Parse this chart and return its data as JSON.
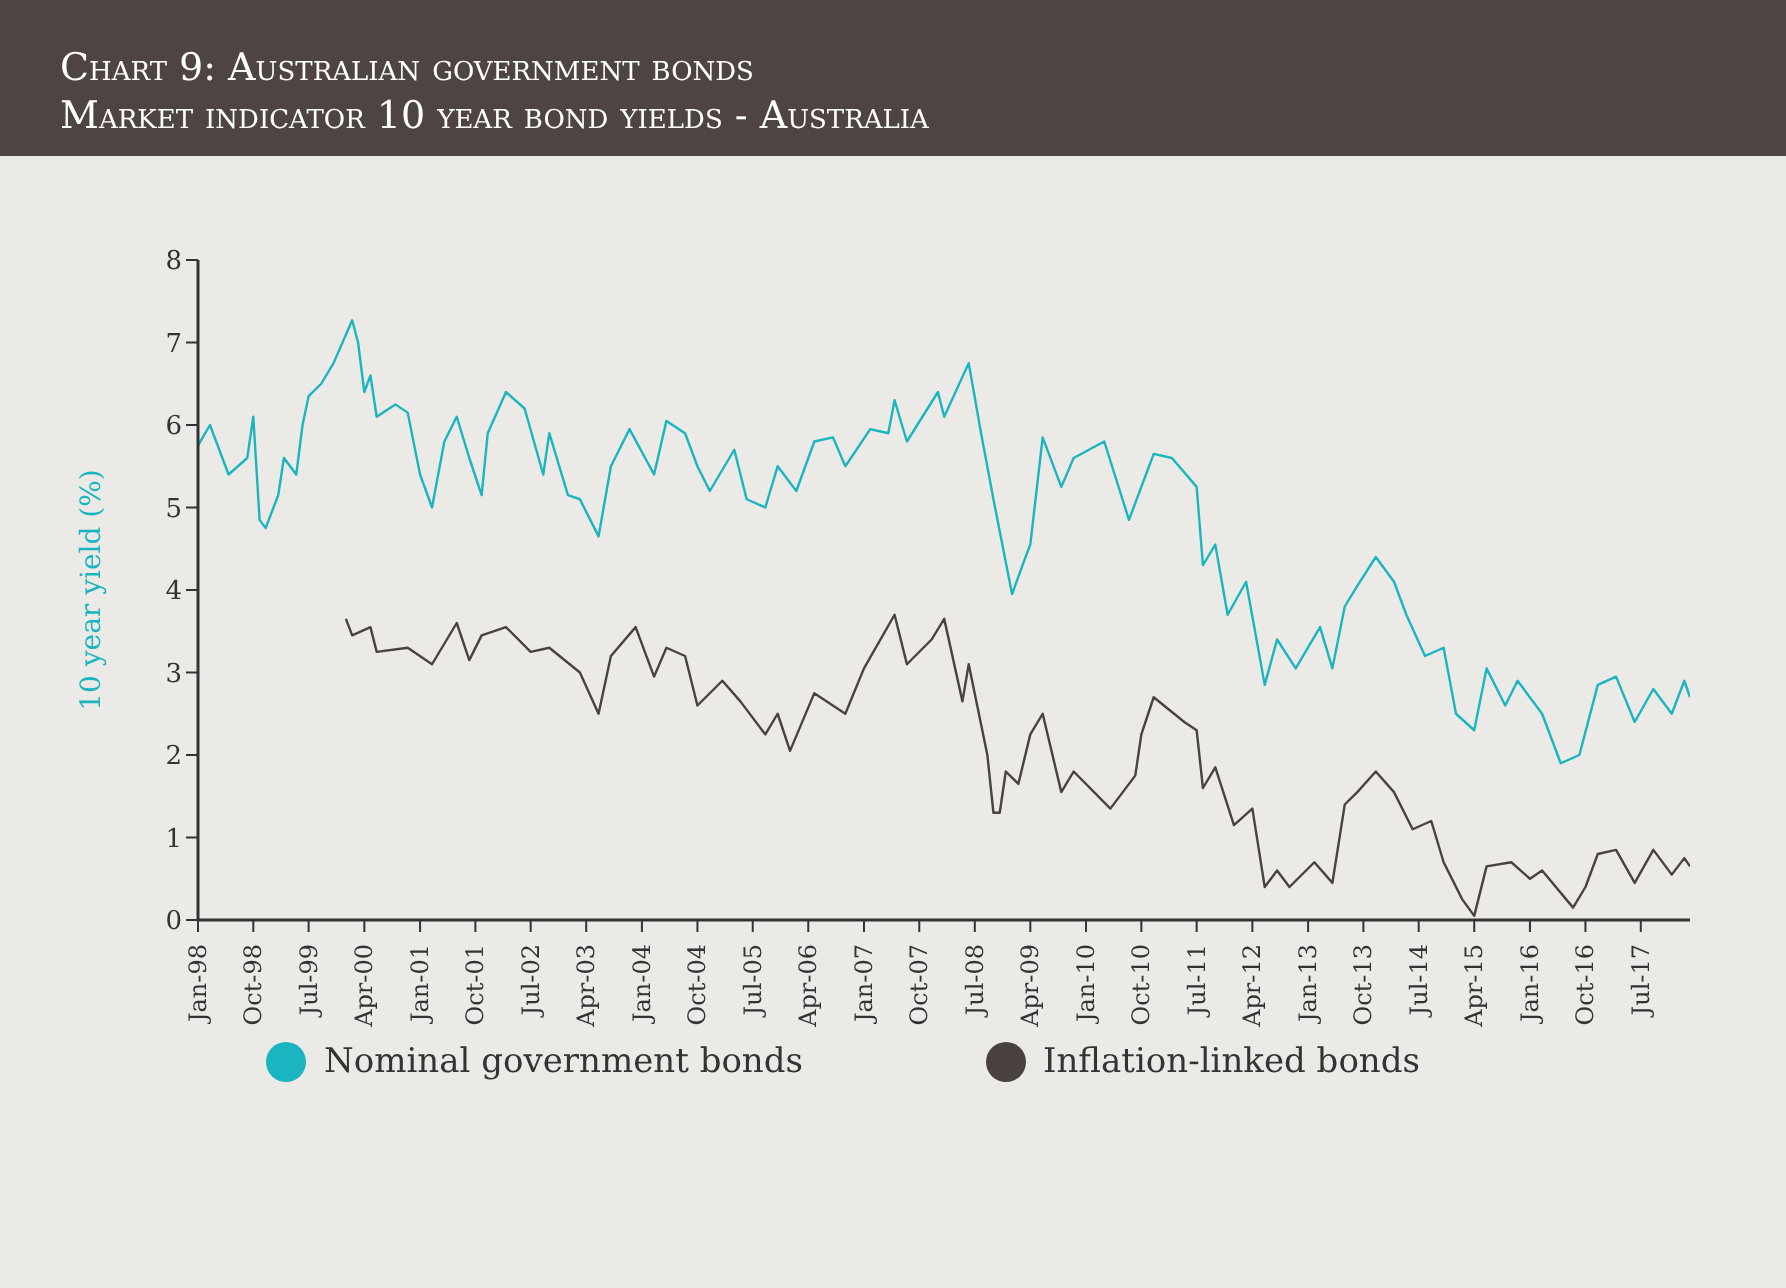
{
  "chart_data": {
    "type": "line",
    "title": "Chart 9: Australian government bonds",
    "subtitle": "Market indicator 10 year bond yields - Australia",
    "ylabel": "10 year yield (%)",
    "legend": "bottom",
    "xlim": [
      "1998-01",
      "2018-03"
    ],
    "xticks": [
      {
        "value": "1998-01",
        "label": "Jan-98"
      },
      {
        "value": "1998-10",
        "label": "Oct-98"
      },
      {
        "value": "1999-07",
        "label": "Jul-99"
      },
      {
        "value": "2000-04",
        "label": "Apr-00"
      },
      {
        "value": "2001-01",
        "label": "Jan-01"
      },
      {
        "value": "2001-10",
        "label": "Oct-01"
      },
      {
        "value": "2002-07",
        "label": "Jul-02"
      },
      {
        "value": "2003-04",
        "label": "Apr-03"
      },
      {
        "value": "2004-01",
        "label": "Jan-04"
      },
      {
        "value": "2004-10",
        "label": "Oct-04"
      },
      {
        "value": "2005-07",
        "label": "Jul-05"
      },
      {
        "value": "2006-04",
        "label": "Apr-06"
      },
      {
        "value": "2007-01",
        "label": "Jan-07"
      },
      {
        "value": "2007-10",
        "label": "Oct-07"
      },
      {
        "value": "2008-07",
        "label": "Jul-08"
      },
      {
        "value": "2009-04",
        "label": "Apr-09"
      },
      {
        "value": "2010-01",
        "label": "Jan-10"
      },
      {
        "value": "2010-10",
        "label": "Oct-10"
      },
      {
        "value": "2011-07",
        "label": "Jul-11"
      },
      {
        "value": "2012-04",
        "label": "Apr-12"
      },
      {
        "value": "2013-01",
        "label": "Jan-13"
      },
      {
        "value": "2013-10",
        "label": "Oct-13"
      },
      {
        "value": "2014-07",
        "label": "Jul-14"
      },
      {
        "value": "2015-04",
        "label": "Apr-15"
      },
      {
        "value": "2016-01",
        "label": "Jan-16"
      },
      {
        "value": "2016-10",
        "label": "Oct-16"
      },
      {
        "value": "2017-07",
        "label": "Jul-17"
      }
    ],
    "ylim": [
      0,
      8
    ],
    "yticks": [
      0,
      1,
      2,
      3,
      4,
      5,
      6,
      7,
      8
    ],
    "series": [
      {
        "name": "Nominal government bonds",
        "color": "#1ab5c0",
        "x": [
          "1998-01",
          "1998-03",
          "1998-06",
          "1998-09",
          "1998-10",
          "1998-11",
          "1998-12",
          "1999-02",
          "1999-03",
          "1999-05",
          "1999-06",
          "1999-07",
          "1999-09",
          "1999-11",
          "2000-02",
          "2000-03",
          "2000-04",
          "2000-05",
          "2000-06",
          "2000-09",
          "2000-11",
          "2001-01",
          "2001-03",
          "2001-05",
          "2001-07",
          "2001-09",
          "2001-11",
          "2001-12",
          "2002-03",
          "2002-06",
          "2002-09",
          "2002-10",
          "2003-01",
          "2003-03",
          "2003-06",
          "2003-08",
          "2003-11",
          "2004-03",
          "2004-05",
          "2004-08",
          "2004-10",
          "2004-12",
          "2005-04",
          "2005-06",
          "2005-09",
          "2005-11",
          "2006-02",
          "2006-05",
          "2006-08",
          "2006-10",
          "2007-02",
          "2007-05",
          "2007-06",
          "2007-08",
          "2008-01",
          "2008-02",
          "2008-06",
          "2008-08",
          "2008-10",
          "2009-01",
          "2009-03",
          "2009-04",
          "2009-06",
          "2009-09",
          "2009-11",
          "2010-04",
          "2010-08",
          "2010-12",
          "2011-03",
          "2011-07",
          "2011-08",
          "2011-10",
          "2011-12",
          "2012-03",
          "2012-06",
          "2012-08",
          "2012-11",
          "2013-03",
          "2013-05",
          "2013-07",
          "2013-09",
          "2013-12",
          "2014-03",
          "2014-05",
          "2014-08",
          "2014-11",
          "2015-01",
          "2015-04",
          "2015-06",
          "2015-09",
          "2015-11",
          "2016-03",
          "2016-06",
          "2016-09",
          "2016-12",
          "2017-03",
          "2017-06",
          "2017-09",
          "2017-12",
          "2018-02",
          "2018-03"
        ],
        "values": [
          5.75,
          6.0,
          5.4,
          5.6,
          6.1,
          4.85,
          4.75,
          5.15,
          5.6,
          5.4,
          6.0,
          6.35,
          6.5,
          6.75,
          7.27,
          7.0,
          6.4,
          6.6,
          6.1,
          6.25,
          6.15,
          5.4,
          5.0,
          5.8,
          6.1,
          5.6,
          5.15,
          5.9,
          6.4,
          6.2,
          5.4,
          5.9,
          5.15,
          5.1,
          4.65,
          5.5,
          5.95,
          5.4,
          6.05,
          5.9,
          5.5,
          5.2,
          5.7,
          5.1,
          5.0,
          5.5,
          5.2,
          5.8,
          5.85,
          5.5,
          5.95,
          5.9,
          6.3,
          5.8,
          6.4,
          6.1,
          6.75,
          5.9,
          5.1,
          3.95,
          4.35,
          4.55,
          5.85,
          5.25,
          5.6,
          5.8,
          4.85,
          5.65,
          5.6,
          5.25,
          4.3,
          4.55,
          3.7,
          4.1,
          2.85,
          3.4,
          3.05,
          3.55,
          3.05,
          3.8,
          4.05,
          4.4,
          4.1,
          3.7,
          3.2,
          3.3,
          2.5,
          2.3,
          3.05,
          2.6,
          2.9,
          2.5,
          1.9,
          2.0,
          2.85,
          2.95,
          2.4,
          2.8,
          2.5,
          2.9,
          2.7
        ]
      },
      {
        "name": "Inflation-linked bonds",
        "color": "#4a4240",
        "x": [
          "2000-01",
          "2000-02",
          "2000-05",
          "2000-06",
          "2000-11",
          "2001-03",
          "2001-07",
          "2001-09",
          "2001-11",
          "2002-03",
          "2002-07",
          "2002-10",
          "2003-03",
          "2003-06",
          "2003-08",
          "2003-12",
          "2004-03",
          "2004-05",
          "2004-08",
          "2004-10",
          "2005-02",
          "2005-05",
          "2005-09",
          "2005-11",
          "2006-01",
          "2006-05",
          "2006-10",
          "2007-01",
          "2007-06",
          "2007-08",
          "2007-12",
          "2008-02",
          "2008-05",
          "2008-06",
          "2008-09",
          "2008-10",
          "2008-11",
          "2008-12",
          "2009-02",
          "2009-04",
          "2009-06",
          "2009-09",
          "2009-11",
          "2010-05",
          "2010-09",
          "2010-10",
          "2010-12",
          "2011-05",
          "2011-07",
          "2011-08",
          "2011-10",
          "2012-01",
          "2012-04",
          "2012-06",
          "2012-08",
          "2012-10",
          "2013-02",
          "2013-05",
          "2013-07",
          "2013-09",
          "2013-12",
          "2014-03",
          "2014-06",
          "2014-09",
          "2014-11",
          "2015-02",
          "2015-04",
          "2015-06",
          "2015-10",
          "2016-01",
          "2016-03",
          "2016-08",
          "2016-10",
          "2016-12",
          "2017-03",
          "2017-06",
          "2017-09",
          "2017-12",
          "2018-02",
          "2018-03"
        ],
        "values": [
          3.65,
          3.45,
          3.55,
          3.25,
          3.3,
          3.1,
          3.6,
          3.15,
          3.45,
          3.55,
          3.25,
          3.3,
          3.0,
          2.5,
          3.2,
          3.55,
          2.95,
          3.3,
          3.2,
          2.6,
          2.9,
          2.65,
          2.25,
          2.5,
          2.05,
          2.75,
          2.5,
          3.05,
          3.7,
          3.1,
          3.4,
          3.65,
          2.65,
          3.1,
          2.0,
          1.3,
          1.3,
          1.8,
          1.65,
          2.25,
          2.5,
          1.55,
          1.8,
          1.35,
          1.75,
          2.25,
          2.7,
          2.4,
          2.3,
          1.6,
          1.85,
          1.15,
          1.35,
          0.4,
          0.6,
          0.4,
          0.7,
          0.45,
          1.4,
          1.55,
          1.8,
          1.55,
          1.1,
          1.2,
          0.7,
          0.25,
          0.05,
          0.65,
          0.7,
          0.5,
          0.6,
          0.15,
          0.4,
          0.8,
          0.85,
          0.45,
          0.85,
          0.55,
          0.75,
          0.65
        ]
      }
    ]
  }
}
